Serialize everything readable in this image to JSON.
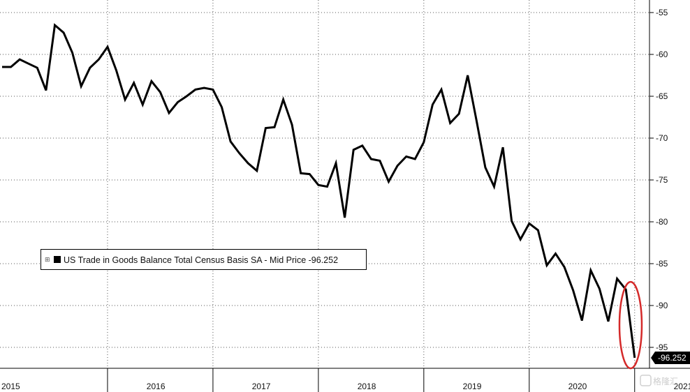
{
  "chart_data": {
    "type": "line",
    "title": "",
    "xlabel": "",
    "ylabel": "",
    "x_start": "2015-01",
    "x_end": "2021-04",
    "x_frequency": "monthly",
    "x_tick_labels": [
      "2015",
      "2016",
      "2017",
      "2018",
      "2019",
      "2020",
      "2021"
    ],
    "y_ticks": [
      -55,
      -60,
      -65,
      -70,
      -75,
      -80,
      -85,
      -90,
      -95
    ],
    "ylim": [
      -97.5,
      -53.5
    ],
    "y_axis_position": "right",
    "grid": "dotted",
    "legend": {
      "placement": "lower-left",
      "text": "US Trade in Goods Balance Total Census Basis SA - Mid Price -96.252",
      "collapse_glyph": "⊞"
    },
    "last_value_label": "-96.252",
    "highlight": {
      "shape": "ellipse",
      "color": "#d42a2a",
      "target": "last two months"
    },
    "line_color": "#000000",
    "series": [
      {
        "values": [
          -61.5,
          -61.5,
          -60.6,
          -61.1,
          -61.6,
          -64.3,
          -56.5,
          -57.4,
          -59.8,
          -63.8,
          -61.6,
          -60.6,
          -59.1,
          -61.9,
          -65.4,
          -63.4,
          -66.0,
          -63.2,
          -64.5,
          -67.0,
          -65.7,
          -65.0,
          -64.2,
          -64.0,
          -64.2,
          -66.3,
          -70.4,
          -71.8,
          -73.0,
          -73.9,
          -68.8,
          -68.7,
          -65.4,
          -68.4,
          -74.2,
          -74.3,
          -75.6,
          -75.8,
          -73.0,
          -79.5,
          -71.4,
          -70.9,
          -72.5,
          -72.7,
          -75.2,
          -73.3,
          -72.2,
          -72.5,
          -70.5,
          -66.0,
          -64.2,
          -68.2,
          -67.1,
          -62.5,
          -67.9,
          -73.5,
          -75.8,
          -71.1,
          -79.9,
          -82.1,
          -80.2,
          -81.0,
          -85.2,
          -83.8,
          -85.4,
          -88.2,
          -91.8,
          -85.8,
          -88.0,
          -91.9,
          -86.8,
          -88.1,
          -96.252
        ]
      }
    ]
  },
  "watermark": {
    "text": "格隆汇"
  }
}
